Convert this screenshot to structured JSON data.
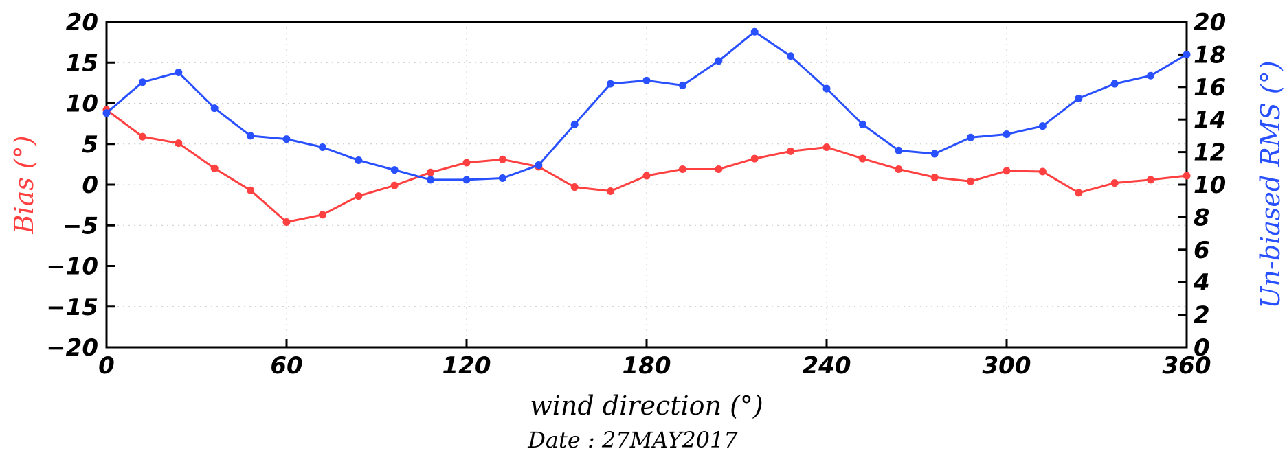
{
  "chart_data": {
    "type": "line",
    "xlabel": "wind direction (°)",
    "ylabel_left": "Bias (°)",
    "ylabel_right": "Un-biased RMS (°)",
    "footer": "Date : 27MAY2017",
    "xlim": [
      0,
      360
    ],
    "ylim_left": [
      -20,
      20
    ],
    "ylim_right": [
      0,
      20
    ],
    "x_ticks": [
      0,
      60,
      120,
      180,
      240,
      300,
      360
    ],
    "y_ticks_left": [
      20,
      15,
      10,
      5,
      0,
      -5,
      -10,
      -15,
      -20
    ],
    "y_ticks_right": [
      20,
      18,
      16,
      14,
      12,
      10,
      8,
      6,
      4,
      2,
      0
    ],
    "grid": true,
    "x": [
      0,
      12,
      24,
      36,
      48,
      60,
      72,
      84,
      96,
      108,
      120,
      132,
      144,
      156,
      168,
      180,
      192,
      204,
      216,
      228,
      240,
      252,
      264,
      276,
      288,
      300,
      312,
      324,
      336,
      348,
      360
    ],
    "series": [
      {
        "axis": "left",
        "color": "#ff4040",
        "values": [
          9.2,
          5.9,
          5.1,
          2.0,
          -0.7,
          -4.6,
          -3.7,
          -1.4,
          -0.1,
          1.5,
          2.7,
          3.1,
          2.2,
          -0.3,
          -0.8,
          1.1,
          1.9,
          1.9,
          3.2,
          4.1,
          4.6,
          3.2,
          1.9,
          0.9,
          0.4,
          1.7,
          1.6,
          -1.0,
          0.2,
          0.6,
          1.1
        ]
      },
      {
        "axis": "right",
        "color": "#2850ff",
        "values": [
          14.4,
          16.3,
          16.9,
          14.7,
          13.0,
          12.8,
          12.3,
          11.5,
          10.9,
          10.3,
          10.3,
          10.4,
          11.2,
          13.7,
          16.2,
          16.4,
          16.1,
          17.6,
          19.4,
          17.9,
          15.9,
          13.7,
          12.1,
          11.9,
          12.9,
          13.1,
          13.6,
          15.3,
          16.2,
          16.7,
          18.0
        ]
      }
    ]
  }
}
